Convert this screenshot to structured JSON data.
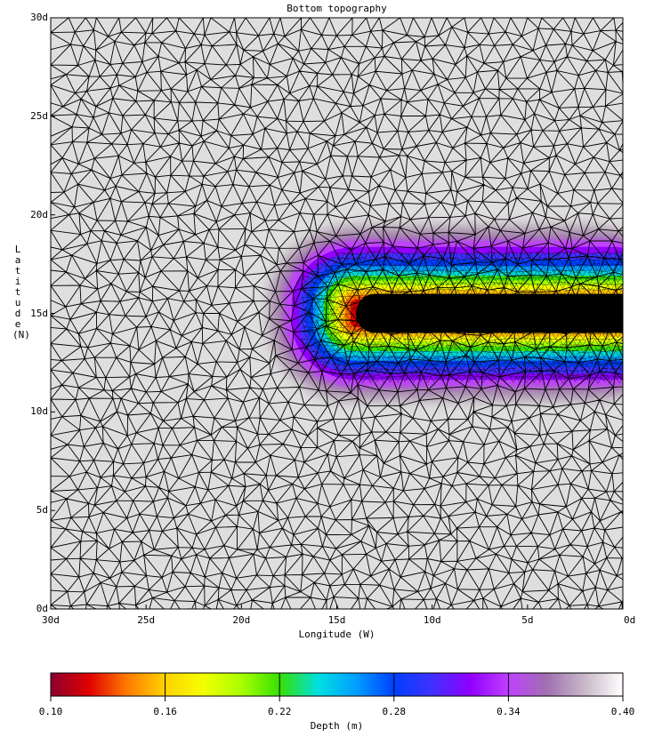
{
  "map": {
    "title": "Bottom topography",
    "xlabel": "Longitude (W)",
    "ylabel": "Latitude (N)",
    "x_range_deg_w": [
      30,
      0
    ],
    "y_range_deg_n": [
      0,
      30
    ],
    "x_ticks": [
      "30d",
      "25d",
      "20d",
      "15d",
      "10d",
      "5d",
      "0d"
    ],
    "y_ticks": [
      "0d",
      "5d",
      "10d",
      "15d",
      "20d",
      "25d",
      "30d"
    ],
    "background_color": "#dedede",
    "mesh_color": "#000000",
    "feature": {
      "shape": "elongated trench open to the east",
      "deep_core_color": "#000000",
      "core_lat_n": 15,
      "core_west_edge_lon_w": 14
    }
  },
  "colorbar": {
    "label": "Depth (m)",
    "ticks": [
      "0.10",
      "0.16",
      "0.22",
      "0.28",
      "0.34",
      "0.40"
    ],
    "range": [
      0.1,
      0.4
    ],
    "colors": [
      "#8b0030",
      "#e00000",
      "#ff7a00",
      "#ffd200",
      "#f4ff00",
      "#a8ff00",
      "#38e000",
      "#00e0e0",
      "#00a0ff",
      "#0040ff",
      "#4030ff",
      "#9000ff",
      "#c040ff",
      "#a070b0",
      "#c8b8c8",
      "#ffffff"
    ]
  }
}
